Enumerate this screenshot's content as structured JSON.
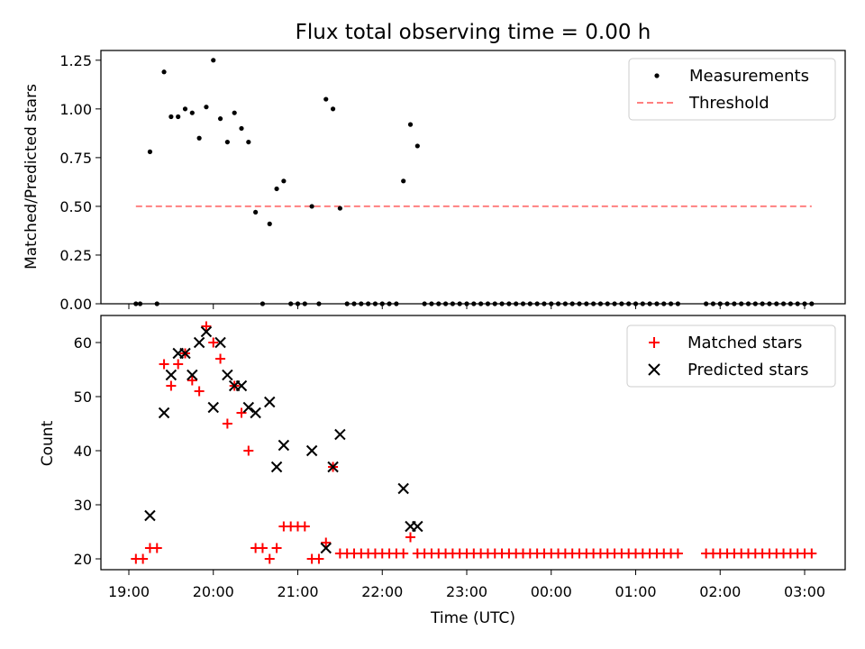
{
  "title": "Flux total observing time = 0.00 h",
  "xlabel": "Time (UTC)",
  "x_ticks": [
    "19:00",
    "20:00",
    "21:00",
    "22:00",
    "23:00",
    "00:00",
    "01:00",
    "02:00",
    "03:00"
  ],
  "colors": {
    "matched": "#ff0000",
    "predicted": "#000000",
    "threshold": "#ff8080",
    "measurements": "#000000"
  },
  "chart_data": [
    {
      "type": "scatter",
      "ylabel": "Matched/Predicted stars",
      "ylim": [
        0,
        1.3
      ],
      "y_ticks": [
        "0.00",
        "0.25",
        "0.50",
        "0.75",
        "1.00",
        "1.25"
      ],
      "legend": {
        "position": "top-right",
        "entries": [
          "Measurements",
          "Threshold"
        ]
      },
      "threshold": {
        "name": "Threshold",
        "value": 0.5,
        "x_start": "19:05",
        "x_end": "03:05"
      },
      "series": [
        {
          "name": "Measurements",
          "x": [
            "19:05",
            "19:08",
            "19:15",
            "19:20",
            "19:25",
            "19:30",
            "19:35",
            "19:40",
            "19:45",
            "19:50",
            "19:55",
            "20:00",
            "20:05",
            "20:10",
            "20:15",
            "20:20",
            "20:25",
            "20:30",
            "20:35",
            "20:40",
            "20:45",
            "20:50",
            "20:55",
            "21:00",
            "21:05",
            "21:10",
            "21:15",
            "21:20",
            "21:25",
            "21:30",
            "21:35",
            "21:40",
            "21:45",
            "21:50",
            "21:55",
            "22:00",
            "22:05",
            "22:10",
            "22:15",
            "22:20",
            "22:25",
            "22:30",
            "22:35",
            "22:40",
            "22:45",
            "22:50",
            "22:55",
            "23:00",
            "23:05",
            "23:10",
            "23:15",
            "23:20",
            "23:25",
            "23:30",
            "23:35",
            "23:40",
            "23:45",
            "23:50",
            "23:55",
            "00:00",
            "00:05",
            "00:10",
            "00:15",
            "00:20",
            "00:25",
            "00:30",
            "00:35",
            "00:40",
            "00:45",
            "00:50",
            "00:55",
            "01:00",
            "01:05",
            "01:10",
            "01:15",
            "01:20",
            "01:25",
            "01:30",
            "01:50",
            "01:55",
            "02:00",
            "02:05",
            "02:10",
            "02:15",
            "02:20",
            "02:25",
            "02:30",
            "02:35",
            "02:40",
            "02:45",
            "02:50",
            "02:55",
            "03:00",
            "03:05"
          ],
          "y": [
            0,
            0,
            0.78,
            0,
            1.19,
            0.96,
            0.96,
            1.0,
            0.98,
            0.85,
            1.01,
            1.25,
            0.95,
            0.83,
            0.98,
            0.9,
            0.83,
            0.47,
            0,
            0.41,
            0.59,
            0.63,
            0,
            0,
            0,
            0.5,
            0,
            1.05,
            1.0,
            0.49,
            0,
            0,
            0,
            0,
            0,
            0,
            0,
            0,
            0.63,
            0.92,
            0.81,
            0,
            0,
            0,
            0,
            0,
            0,
            0,
            0,
            0,
            0,
            0,
            0,
            0,
            0,
            0,
            0,
            0,
            0,
            0,
            0,
            0,
            0,
            0,
            0,
            0,
            0,
            0,
            0,
            0,
            0,
            0,
            0,
            0,
            0,
            0,
            0,
            0,
            0,
            0,
            0,
            0,
            0,
            0,
            0,
            0,
            0,
            0,
            0,
            0,
            0,
            0,
            0,
            0
          ]
        }
      ]
    },
    {
      "type": "scatter",
      "ylabel": "Count",
      "ylim": [
        18,
        65
      ],
      "y_ticks": [
        "20",
        "30",
        "40",
        "50",
        "60"
      ],
      "legend": {
        "position": "top-right",
        "entries": [
          "Matched stars",
          "Predicted stars"
        ]
      },
      "series": [
        {
          "name": "Matched stars",
          "x": [
            "19:05",
            "19:10",
            "19:15",
            "19:20",
            "19:25",
            "19:30",
            "19:35",
            "19:40",
            "19:45",
            "19:50",
            "19:55",
            "20:00",
            "20:05",
            "20:10",
            "20:15",
            "20:20",
            "20:25",
            "20:30",
            "20:35",
            "20:40",
            "20:45",
            "20:50",
            "20:55",
            "21:00",
            "21:05",
            "21:10",
            "21:15",
            "21:20",
            "21:25",
            "21:30",
            "21:35",
            "21:40",
            "21:45",
            "21:50",
            "21:55",
            "22:00",
            "22:05",
            "22:10",
            "22:15",
            "22:20",
            "22:25",
            "22:30",
            "22:35",
            "22:40",
            "22:45",
            "22:50",
            "22:55",
            "23:00",
            "23:05",
            "23:10",
            "23:15",
            "23:20",
            "23:25",
            "23:30",
            "23:35",
            "23:40",
            "23:45",
            "23:50",
            "23:55",
            "00:00",
            "00:05",
            "00:10",
            "00:15",
            "00:20",
            "00:25",
            "00:30",
            "00:35",
            "00:40",
            "00:45",
            "00:50",
            "00:55",
            "01:00",
            "01:05",
            "01:10",
            "01:15",
            "01:20",
            "01:25",
            "01:30",
            "01:50",
            "01:55",
            "02:00",
            "02:05",
            "02:10",
            "02:15",
            "02:20",
            "02:25",
            "02:30",
            "02:35",
            "02:40",
            "02:45",
            "02:50",
            "02:55",
            "03:00",
            "03:05"
          ],
          "y": [
            20,
            20,
            22,
            22,
            56,
            52,
            56,
            58,
            53,
            51,
            63,
            60,
            57,
            45,
            52,
            47,
            40,
            22,
            22,
            20,
            22,
            26,
            26,
            26,
            26,
            20,
            20,
            23,
            37,
            21,
            21,
            21,
            21,
            21,
            21,
            21,
            21,
            21,
            21,
            24,
            21,
            21,
            21,
            21,
            21,
            21,
            21,
            21,
            21,
            21,
            21,
            21,
            21,
            21,
            21,
            21,
            21,
            21,
            21,
            21,
            21,
            21,
            21,
            21,
            21,
            21,
            21,
            21,
            21,
            21,
            21,
            21,
            21,
            21,
            21,
            21,
            21,
            21,
            21,
            21,
            21,
            21,
            21,
            21,
            21,
            21,
            21,
            21,
            21,
            21,
            21,
            21,
            21,
            21
          ]
        },
        {
          "name": "Predicted stars",
          "x": [
            "19:15",
            "19:25",
            "19:30",
            "19:35",
            "19:40",
            "19:45",
            "19:50",
            "19:55",
            "20:00",
            "20:05",
            "20:10",
            "20:15",
            "20:20",
            "20:25",
            "20:30",
            "20:40",
            "20:45",
            "20:50",
            "21:10",
            "21:20",
            "21:25",
            "21:30",
            "22:15",
            "22:20",
            "22:25"
          ],
          "y": [
            28,
            47,
            54,
            58,
            58,
            54,
            60,
            62,
            48,
            60,
            54,
            52,
            52,
            48,
            47,
            49,
            37,
            41,
            40,
            22,
            37,
            43,
            33,
            26,
            26
          ]
        }
      ]
    }
  ]
}
